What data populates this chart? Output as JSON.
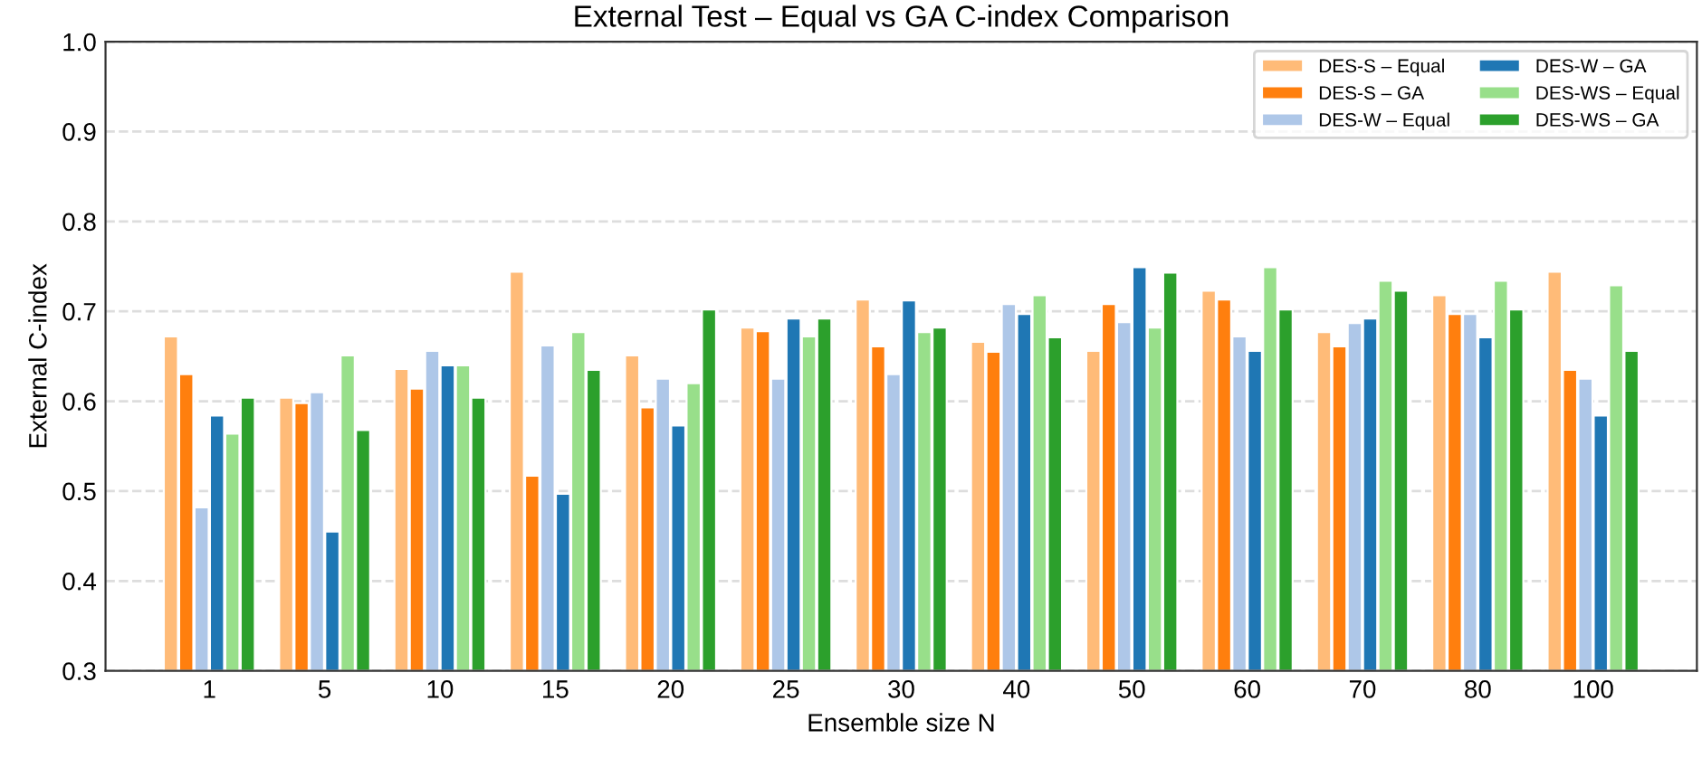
{
  "chart_data": {
    "type": "bar",
    "title": "External Test – Equal vs GA C-index Comparison",
    "xlabel": "Ensemble size N",
    "ylabel": "External C-index",
    "categories": [
      "1",
      "5",
      "10",
      "15",
      "20",
      "25",
      "30",
      "40",
      "50",
      "60",
      "70",
      "80",
      "100"
    ],
    "series": [
      {
        "name": "DES-S – Equal",
        "color": "#ffbb78",
        "values": [
          0.672,
          0.604,
          0.636,
          0.744,
          0.651,
          0.682,
          0.713,
          0.666,
          0.656,
          0.723,
          0.677,
          0.718,
          0.744
        ]
      },
      {
        "name": "DES-S – GA",
        "color": "#ff7f0e",
        "values": [
          0.63,
          0.598,
          0.614,
          0.517,
          0.593,
          0.678,
          0.661,
          0.655,
          0.708,
          0.713,
          0.661,
          0.697,
          0.635
        ]
      },
      {
        "name": "DES-W – Equal",
        "color": "#aec7e8",
        "values": [
          0.482,
          0.61,
          0.656,
          0.662,
          0.625,
          0.625,
          0.63,
          0.708,
          0.688,
          0.672,
          0.687,
          0.697,
          0.625
        ]
      },
      {
        "name": "DES-W – GA",
        "color": "#1f77b4",
        "values": [
          0.584,
          0.455,
          0.64,
          0.497,
          0.573,
          0.692,
          0.712,
          0.697,
          0.749,
          0.656,
          0.692,
          0.671,
          0.584
        ]
      },
      {
        "name": "DES-WS – Equal",
        "color": "#98df8a",
        "values": [
          0.564,
          0.651,
          0.64,
          0.677,
          0.62,
          0.672,
          0.677,
          0.718,
          0.682,
          0.749,
          0.734,
          0.734,
          0.729
        ]
      },
      {
        "name": "DES-WS – GA",
        "color": "#2ca02c",
        "values": [
          0.604,
          0.568,
          0.604,
          0.635,
          0.702,
          0.692,
          0.682,
          0.671,
          0.743,
          0.702,
          0.723,
          0.702,
          0.656
        ]
      }
    ],
    "ylim": [
      0.3,
      1.0
    ],
    "yticks": [
      {
        "value": 0.3,
        "label": "0.3"
      },
      {
        "value": 0.4,
        "label": "0.4"
      },
      {
        "value": 0.5,
        "label": "0.5"
      },
      {
        "value": 0.6,
        "label": "0.6"
      },
      {
        "value": 0.7,
        "label": "0.7"
      },
      {
        "value": 0.8,
        "label": "0.8"
      },
      {
        "value": 0.9,
        "label": "0.9"
      },
      {
        "value": 1.0,
        "label": "1.0"
      }
    ],
    "grid": "y",
    "legend": "top right"
  }
}
